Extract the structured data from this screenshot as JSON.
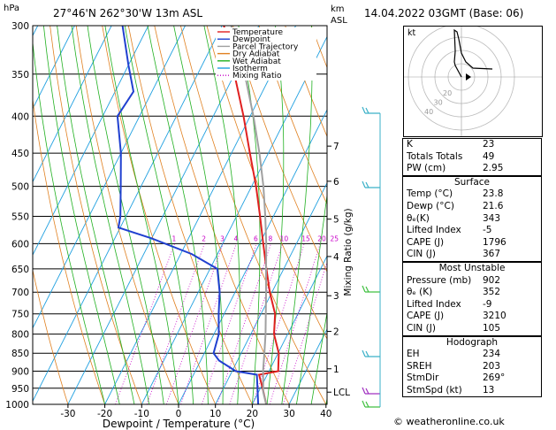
{
  "header": {
    "location": "27°46'N  262°30'W  13m  ASL",
    "datetime": "14.04.2022  03GMT  (Base: 06)",
    "pressure_unit": "hPa",
    "km_unit_line1": "km",
    "km_unit_line2": "ASL"
  },
  "chart_data": {
    "type": "line",
    "title": "",
    "xlabel": "Dewpoint / Temperature (°C)",
    "ylabel": "",
    "right_ylabel": "Mixing Ratio (g/kg)",
    "xlim": [
      -40,
      40
    ],
    "ylim": [
      1000,
      300
    ],
    "x_ticks": [
      -30,
      -20,
      -10,
      0,
      10,
      20,
      30,
      40
    ],
    "y_ticks": [
      300,
      350,
      400,
      450,
      500,
      550,
      600,
      650,
      700,
      750,
      800,
      850,
      900,
      950,
      1000
    ],
    "km_ticks": [
      {
        "label": "7",
        "p": 440
      },
      {
        "label": "6",
        "p": 492
      },
      {
        "label": "5",
        "p": 555
      },
      {
        "label": "4",
        "p": 625
      },
      {
        "label": "3",
        "p": 708
      },
      {
        "label": "2",
        "p": 793
      },
      {
        "label": "1",
        "p": 893
      },
      {
        "label": "LCL",
        "p": 962
      }
    ],
    "mixing_ratio_labels": [
      "1",
      "2",
      "3",
      "4",
      "6",
      "8",
      "10",
      "15",
      "20",
      "25"
    ],
    "legend": [
      "Temperature",
      "Dewpoint",
      "Parcel Trajectory",
      "Dry Adiabat",
      "Wet Adiabat",
      "Isotherm",
      "Mixing Ratio"
    ],
    "legend_placement": "top-left",
    "series": [
      {
        "name": "Temperature",
        "color": "#e02020",
        "points": [
          [
            1000,
            23.8
          ],
          [
            950,
            20.6
          ],
          [
            910,
            17.8
          ],
          [
            900,
            22.5
          ],
          [
            850,
            20.2
          ],
          [
            800,
            16.3
          ],
          [
            750,
            13.8
          ],
          [
            700,
            9.4
          ],
          [
            650,
            5.3
          ],
          [
            600,
            1.0
          ],
          [
            550,
            -3.6
          ],
          [
            500,
            -8.8
          ],
          [
            450,
            -15.0
          ],
          [
            400,
            -21.8
          ],
          [
            350,
            -30.0
          ],
          [
            300,
            -39.5
          ]
        ]
      },
      {
        "name": "Dewpoint",
        "color": "#2040d0",
        "points": [
          [
            1000,
            21.6
          ],
          [
            950,
            19.2
          ],
          [
            910,
            17.2
          ],
          [
            900,
            11.0
          ],
          [
            870,
            5.0
          ],
          [
            850,
            2.5
          ],
          [
            800,
            1.3
          ],
          [
            750,
            -1.5
          ],
          [
            700,
            -4.2
          ],
          [
            650,
            -8.0
          ],
          [
            620,
            -17.0
          ],
          [
            590,
            -30.0
          ],
          [
            570,
            -40.5
          ],
          [
            550,
            -41.5
          ],
          [
            500,
            -45.5
          ],
          [
            450,
            -50.0
          ],
          [
            400,
            -56.0
          ],
          [
            370,
            -55.0
          ],
          [
            340,
            -60.0
          ],
          [
            300,
            -67.0
          ]
        ]
      },
      {
        "name": "Parcel Trajectory",
        "color": "#a0a0a0",
        "points": [
          [
            1000,
            23.8
          ],
          [
            962,
            21.3
          ],
          [
            900,
            18.4
          ],
          [
            850,
            16.3
          ],
          [
            800,
            14.0
          ],
          [
            750,
            11.3
          ],
          [
            700,
            8.4
          ],
          [
            650,
            5.2
          ],
          [
            600,
            1.8
          ],
          [
            550,
            -2.2
          ],
          [
            500,
            -6.8
          ],
          [
            450,
            -12.4
          ],
          [
            400,
            -19.1
          ],
          [
            350,
            -27.2
          ],
          [
            300,
            -37.5
          ]
        ]
      }
    ]
  },
  "hodograph": {
    "unit_label": "kt",
    "ring_labels": [
      "20",
      "30",
      "40"
    ]
  },
  "indices": [
    {
      "label": "K",
      "value": "23"
    },
    {
      "label": "Totals Totals",
      "value": "49"
    },
    {
      "label": "PW (cm)",
      "value": "2.95"
    }
  ],
  "surface": {
    "title": "Surface",
    "rows": [
      {
        "label": "Temp (°C)",
        "value": "23.8"
      },
      {
        "label": "Dewp (°C)",
        "value": "21.6"
      },
      {
        "label": "θₑ(K)",
        "value": "343"
      },
      {
        "label": "Lifted Index",
        "value": "-5"
      },
      {
        "label": "CAPE (J)",
        "value": "1796"
      },
      {
        "label": "CIN (J)",
        "value": "367"
      }
    ]
  },
  "most_unstable": {
    "title": "Most Unstable",
    "rows": [
      {
        "label": "Pressure (mb)",
        "value": "902"
      },
      {
        "label": "θₑ (K)",
        "value": "352"
      },
      {
        "label": "Lifted Index",
        "value": "-9"
      },
      {
        "label": "CAPE (J)",
        "value": "3210"
      },
      {
        "label": "CIN (J)",
        "value": "105"
      }
    ]
  },
  "hodograph_table": {
    "title": "Hodograph",
    "rows": [
      {
        "label": "EH",
        "value": "234"
      },
      {
        "label": "SREH",
        "value": "203"
      },
      {
        "label": "StmDir",
        "value": "269°"
      },
      {
        "label": "StmSpd (kt)",
        "value": "13"
      }
    ]
  },
  "footer": "© weatheronline.co.uk"
}
